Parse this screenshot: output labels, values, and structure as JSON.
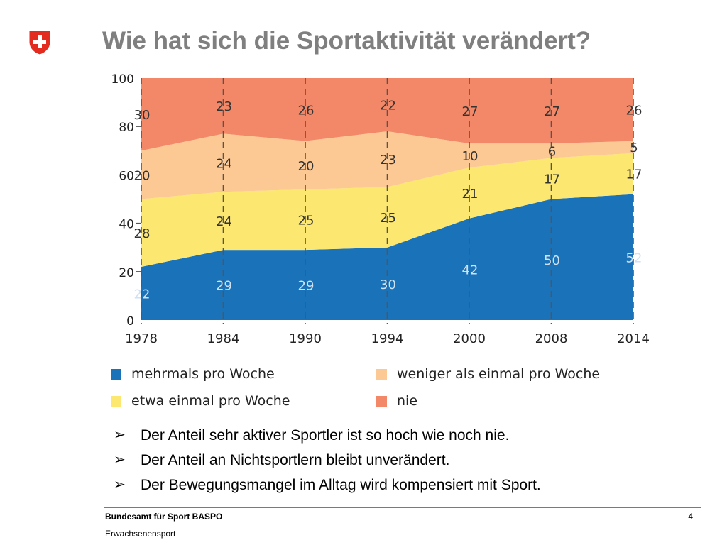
{
  "slide": {
    "title": "Wie hat sich die Sportaktivität verändert?",
    "page_number": "4",
    "footer_org": "Bundesamt für Sport BASPO",
    "footer_dept": "Erwachsenensport"
  },
  "bullets": [
    "Der Anteil sehr aktiver Sportler ist so hoch wie noch nie.",
    "Der Anteil an Nichtsportlern bleibt unverändert.",
    "Der Bewegungsmangel im Alltag wird kompensiert mit Sport."
  ],
  "chart_data": {
    "type": "area",
    "stacked": true,
    "title": "",
    "xlabel": "",
    "ylabel": "",
    "ylim": [
      0,
      100
    ],
    "yticks": [
      0,
      20,
      40,
      60,
      80,
      100
    ],
    "x": [
      "1978",
      "1984",
      "1990",
      "1994",
      "2000",
      "2008",
      "2014"
    ],
    "grid": false,
    "vertical_dashed_lines": true,
    "legend_position": "bottom",
    "series": [
      {
        "name": "mehrmals pro Woche",
        "color": "#1a72b9",
        "values": [
          22,
          29,
          29,
          30,
          42,
          50,
          52
        ]
      },
      {
        "name": "etwa einmal pro Woche",
        "color": "#fce771",
        "values": [
          28,
          24,
          25,
          25,
          21,
          17,
          17
        ]
      },
      {
        "name": "weniger als einmal pro Woche",
        "color": "#fcc893",
        "values": [
          20,
          24,
          20,
          23,
          10,
          6,
          5
        ]
      },
      {
        "name": "nie",
        "color": "#f28867",
        "values": [
          30,
          23,
          26,
          22,
          27,
          27,
          26
        ]
      }
    ]
  },
  "legend": [
    {
      "label": "mehrmals pro Woche",
      "color": "#1a72b9"
    },
    {
      "label": "weniger als einmal pro Woche",
      "color": "#fcc893"
    },
    {
      "label": "etwa einmal pro Woche",
      "color": "#fce771"
    },
    {
      "label": "nie",
      "color": "#f28867"
    }
  ],
  "colors": {
    "title": "#7f7f7f",
    "logo_red": "#e32b1f"
  }
}
